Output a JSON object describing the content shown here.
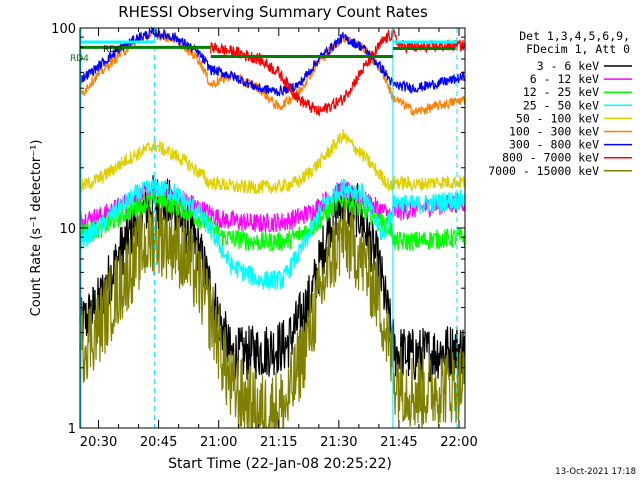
{
  "chart_data": {
    "type": "line",
    "title": "RHESSI Observing Summary Count Rates",
    "xlabel": "Start Time (22-Jan-08 20:25:22)",
    "ylabel": "Count Rate (s⁻¹ detector⁻¹)",
    "yscale": "log",
    "ylim": [
      1,
      100
    ],
    "xlim_minutes_after_2025": [
      0.37,
      96.5
    ],
    "x_tick_labels": [
      "20:30",
      "20:45",
      "21:00",
      "21:15",
      "21:30",
      "21:45",
      "22:00"
    ],
    "x_tick_minutes": [
      5,
      20,
      35,
      50,
      65,
      80,
      95
    ],
    "y_tick_labels": [
      "1",
      "10",
      "100"
    ],
    "y_tick_values": [
      1,
      10,
      100
    ],
    "grid": false,
    "legend_position": "right",
    "legend_header": [
      "Det 1,3,4,5,6,9,",
      "FDecim 1, Att 0"
    ],
    "timestamp": "13-Oct-2021 17:18",
    "annotations": [
      "RD0",
      "RD4"
    ],
    "markers": {
      "dashed_vertical_minutes": [
        19,
        94.5
      ],
      "solid_vertical_minutes": [
        0.6,
        78.5
      ],
      "cyan_bar_segments": [
        [
          0.6,
          19
        ],
        [
          78.5,
          94.5
        ]
      ],
      "green_bar_segments": [
        {
          "x": [
            0.37,
            33
          ],
          "y": 80
        },
        {
          "x": [
            33,
            78.5
          ],
          "y": 72
        },
        {
          "x": [
            78.5,
            94
          ],
          "y": 79
        }
      ]
    },
    "series": [
      {
        "name": "3 - 6 keV",
        "color": "#000000",
        "x": [
          0.37,
          5,
          10,
          15,
          19,
          24,
          30,
          34,
          38,
          45,
          52,
          58,
          63,
          66,
          70,
          75,
          79,
          84,
          90,
          96.5
        ],
        "y": [
          3.2,
          4.2,
          7.2,
          11.5,
          13.8,
          12.5,
          7.8,
          4.2,
          2.3,
          2.4,
          2.6,
          4.5,
          11,
          13.8,
          12,
          6.5,
          2.4,
          2.3,
          2.4,
          2.5
        ]
      },
      {
        "name": "6 - 12 keV",
        "color": "#ff00ff",
        "x": [
          0.37,
          6,
          12,
          19,
          26,
          32,
          36,
          45,
          52,
          58,
          64,
          66,
          72,
          78,
          79,
          84,
          90,
          96.5
        ],
        "y": [
          11,
          11.5,
          13.5,
          15.5,
          14,
          12,
          11,
          10.5,
          10.8,
          12,
          15,
          15.5,
          13.5,
          11.5,
          12,
          12.5,
          13,
          13.5
        ]
      },
      {
        "name": "12 - 25 keV",
        "color": "#00ff00",
        "x": [
          0.37,
          6,
          12,
          19,
          26,
          32,
          36,
          45,
          52,
          58,
          64,
          66,
          72,
          78,
          79,
          84,
          90,
          96.5
        ],
        "y": [
          9.5,
          10,
          12,
          14,
          12.5,
          10.5,
          9,
          8.5,
          8.6,
          10,
          13,
          14,
          12,
          9.8,
          8.5,
          8.6,
          8.8,
          9
        ]
      },
      {
        "name": "25 - 50 keV",
        "color": "#00ffff",
        "x": [
          0.37,
          5,
          10,
          15,
          19,
          24,
          30,
          34,
          38,
          45,
          51,
          56,
          61,
          66,
          71,
          76,
          79,
          84,
          90,
          96.5
        ],
        "y": [
          8.5,
          10,
          12.5,
          15,
          16,
          15,
          12,
          9,
          6.5,
          5.5,
          5.5,
          8,
          13,
          16,
          15,
          9,
          13.5,
          13,
          13.5,
          14
        ]
      },
      {
        "name": "50 - 100 keV",
        "color": "#e0d000",
        "x": [
          0.37,
          6,
          12,
          19,
          26,
          31.5,
          32,
          40,
          50,
          55,
          60,
          66,
          72,
          78,
          79,
          84,
          90,
          96.5
        ],
        "y": [
          16,
          18,
          22,
          26,
          22,
          18,
          17,
          16,
          16,
          17,
          21,
          29,
          22,
          16,
          17,
          16.5,
          17,
          17
        ]
      },
      {
        "name": "100 - 300 keV",
        "color": "#ff8000",
        "x": [
          0.37,
          4,
          10,
          15,
          19,
          24,
          30,
          33,
          38,
          45,
          50,
          55,
          60,
          66,
          71,
          76,
          78.5,
          84,
          90,
          96.5
        ],
        "y": [
          46,
          56,
          73,
          88,
          93,
          88,
          70,
          52,
          58,
          50,
          40,
          48,
          68,
          90,
          80,
          60,
          45,
          38,
          41,
          44
        ]
      },
      {
        "name": "300 - 800 keV",
        "color": "#0000ff",
        "x": [
          0.37,
          4,
          10,
          15,
          19,
          24,
          30,
          33,
          38,
          45,
          50,
          55,
          60,
          66,
          71,
          76,
          78.5,
          84,
          90,
          96.5
        ],
        "y": [
          55,
          62,
          78,
          90,
          95,
          90,
          75,
          62,
          58,
          50,
          48,
          52,
          70,
          90,
          80,
          62,
          52,
          50,
          53,
          57
        ]
      },
      {
        "name": "800 - 7000 keV",
        "color": "#ff0000",
        "x": [
          33,
          36,
          40,
          45,
          50,
          55,
          60,
          66,
          71,
          76,
          78.5,
          80,
          85,
          90,
          96.5
        ],
        "y": [
          80,
          78,
          75,
          70,
          60,
          44,
          38,
          44,
          62,
          86,
          94,
          82,
          80,
          81,
          82
        ]
      },
      {
        "name": "7000 - 15000 keV",
        "color": "#808000",
        "x": [
          0.37,
          5,
          10,
          15,
          19,
          24,
          30,
          34,
          38,
          45,
          52,
          58,
          63,
          66,
          70,
          75,
          79,
          84,
          90,
          96.5
        ],
        "y": [
          2.5,
          3.2,
          5,
          7.5,
          9.2,
          8.5,
          5.5,
          3.2,
          1.6,
          1.2,
          1.3,
          3.2,
          7,
          9,
          7.5,
          4.5,
          1.8,
          1.5,
          1.6,
          1.7
        ]
      }
    ]
  }
}
